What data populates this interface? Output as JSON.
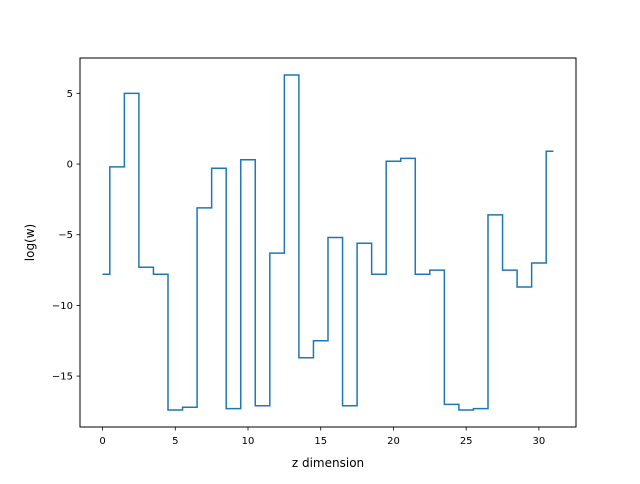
{
  "chart_data": {
    "type": "line",
    "drawstyle": "steps-mid",
    "title": "",
    "xlabel": "z dimension",
    "ylabel": "log(w)",
    "xlim": [
      -1.55,
      32.55
    ],
    "ylim": [
      -18.6,
      7.5
    ],
    "xticks": [
      0,
      5,
      10,
      15,
      20,
      25,
      30
    ],
    "xtick_labels": [
      "0",
      "5",
      "10",
      "15",
      "20",
      "25",
      "30"
    ],
    "yticks": [
      5,
      0,
      -5,
      -10,
      -15
    ],
    "ytick_labels": [
      "5",
      "0",
      "−5",
      "−10",
      "−15"
    ],
    "grid": false,
    "legend": "none",
    "series": [
      {
        "color": "#1f77b4",
        "x": [
          0,
          1,
          2,
          3,
          4,
          5,
          6,
          7,
          8,
          9,
          10,
          11,
          12,
          13,
          14,
          15,
          16,
          17,
          18,
          19,
          20,
          21,
          22,
          23,
          24,
          25,
          26,
          27,
          28,
          29,
          30,
          31
        ],
        "values": [
          -7.8,
          -0.2,
          5.0,
          -7.3,
          -7.8,
          -17.4,
          -17.2,
          -3.1,
          -0.3,
          -17.3,
          0.3,
          -17.1,
          -6.3,
          6.3,
          -13.7,
          -12.5,
          -5.2,
          -17.1,
          -5.6,
          -7.8,
          0.2,
          0.4,
          -7.8,
          -7.5,
          -17.0,
          -17.4,
          -17.3,
          -3.6,
          -7.5,
          -8.7,
          -7.0,
          0.9
        ]
      }
    ]
  }
}
